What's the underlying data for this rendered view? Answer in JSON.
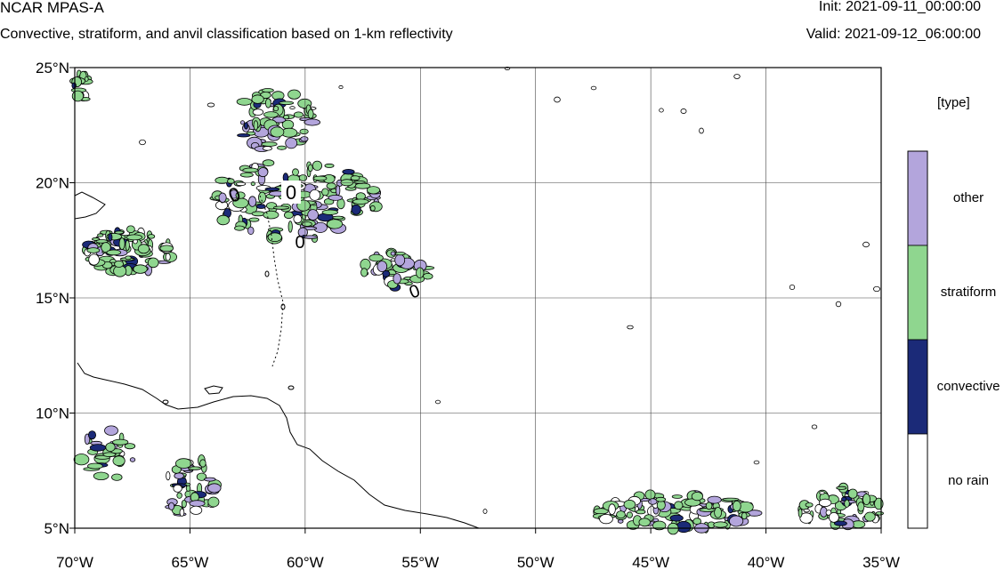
{
  "header": {
    "title": "NCAR MPAS-A",
    "subtitle": "Convective, stratiform, and anvil classification based on 1-km reflectivity",
    "init": "Init: 2021-09-11_00:00:00",
    "valid": "Valid: 2021-09-12_06:00:00"
  },
  "map": {
    "lon_range": [
      -70,
      -35
    ],
    "lat_range": [
      5,
      25
    ],
    "grid_lons": [
      -70,
      -65,
      -60,
      -55,
      -50,
      -45,
      -40,
      -35
    ],
    "grid_lats": [
      5,
      10,
      15,
      20,
      25
    ],
    "x_tick_labels": [
      "70°W",
      "65°W",
      "60°W",
      "55°W",
      "50°W",
      "45°W",
      "40°W",
      "35°W"
    ],
    "y_tick_labels": [
      "5°N",
      "10°N",
      "15°N",
      "20°N",
      "25°N"
    ],
    "contour_labels": [
      "0",
      "0",
      "0",
      "0"
    ],
    "colors": {
      "other": "#b3a5dc",
      "stratiform": "#8fd68f",
      "convective": "#1b2a78",
      "no_rain": "#ffffff"
    }
  },
  "legend": {
    "title": "[type]",
    "categories": [
      {
        "label": "other",
        "color": "#b3a5dc"
      },
      {
        "label": "stratiform",
        "color": "#8fd68f"
      },
      {
        "label": "convective",
        "color": "#1b2a78"
      },
      {
        "label": "no rain",
        "color": "#ffffff"
      }
    ]
  }
}
